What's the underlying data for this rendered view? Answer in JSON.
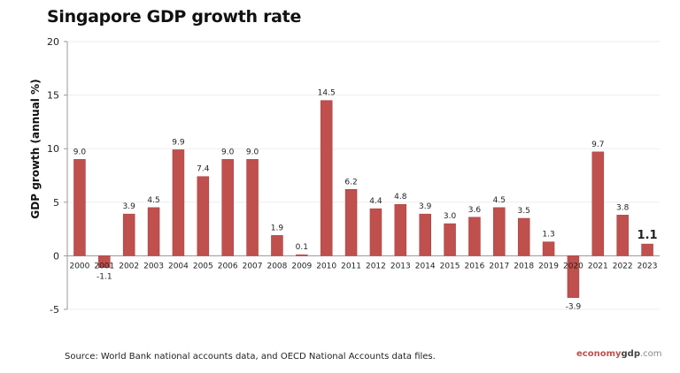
{
  "chart_data": {
    "type": "bar",
    "title": "Singapore GDP growth rate",
    "xlabel": "",
    "ylabel": "GDP growth (annual %)",
    "ylim": [
      -5,
      20
    ],
    "yticks": [
      -5,
      0,
      5,
      10,
      15,
      20
    ],
    "grid": true,
    "bar_color": "#c0504d",
    "categories": [
      "2000",
      "2001",
      "2002",
      "2003",
      "2004",
      "2005",
      "2006",
      "2007",
      "2008",
      "2009",
      "2010",
      "2011",
      "2012",
      "2013",
      "2014",
      "2015",
      "2016",
      "2017",
      "2018",
      "2019",
      "2020",
      "2021",
      "2022",
      "2023"
    ],
    "values": [
      9.0,
      -1.1,
      3.9,
      4.5,
      9.9,
      7.4,
      9.0,
      9.0,
      1.9,
      0.1,
      14.5,
      6.2,
      4.4,
      4.8,
      3.9,
      3.0,
      3.6,
      4.5,
      3.5,
      1.3,
      -3.9,
      9.7,
      3.8,
      1.1
    ],
    "labels": [
      "9.0",
      "-1.1",
      "3.9",
      "4.5",
      "9.9",
      "7.4",
      "9.0",
      "9.0",
      "1.9",
      "0.1",
      "14.5",
      "6.2",
      "4.4",
      "4.8",
      "3.9",
      "3.0",
      "3.6",
      "4.5",
      "3.5",
      "1.3",
      "-3.9",
      "9.7",
      "3.8",
      "1.1"
    ]
  },
  "source": "Source: World Bank national accounts data, and OECD National Accounts data files.",
  "brand": {
    "part1": "economy",
    "part2": "gdp",
    "part3": ".com"
  }
}
